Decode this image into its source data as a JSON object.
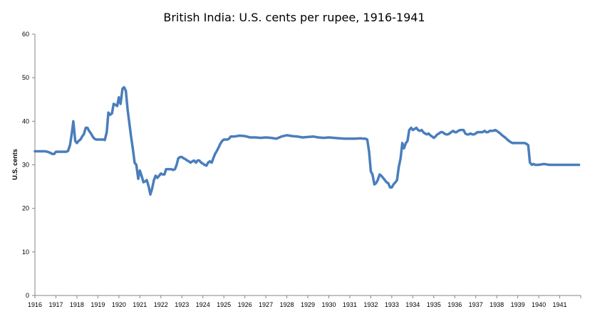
{
  "chart_data": {
    "type": "line",
    "title": "British India: U.S. cents per rupee, 1916-1941",
    "xlabel": "",
    "ylabel": "U.S. cents",
    "ylim": [
      0,
      60
    ],
    "yticks": [
      0,
      10,
      20,
      30,
      40,
      50,
      60
    ],
    "xlim": [
      1916,
      1942
    ],
    "xticks": [
      "1916",
      "1917",
      "1918",
      "1919",
      "1920",
      "1921",
      "1922",
      "1923",
      "1924",
      "1925",
      "1926",
      "1927",
      "1928",
      "1929",
      "1930",
      "1931",
      "1932",
      "1933",
      "1934",
      "1935",
      "1936",
      "1937",
      "1938",
      "1939",
      "1940",
      "1941"
    ],
    "grid": false,
    "legend": "none",
    "colors": {
      "line": "#4a7ebb",
      "axis": "#868686"
    },
    "series": [
      {
        "x": [
          1916.0,
          1916.08,
          1916.17,
          1916.25,
          1916.33,
          1916.42,
          1916.5,
          1916.58,
          1916.67,
          1916.75,
          1916.83,
          1916.92,
          1917.0,
          1917.08,
          1917.17,
          1917.25,
          1917.33,
          1917.42,
          1917.5,
          1917.58,
          1917.67,
          1917.75,
          1917.83,
          1917.92,
          1918.0,
          1918.08,
          1918.17,
          1918.25,
          1918.33,
          1918.42,
          1918.5,
          1918.58,
          1918.67,
          1918.75,
          1918.83,
          1918.92,
          1919.0,
          1919.08,
          1919.17,
          1919.25,
          1919.33,
          1919.42,
          1919.5,
          1919.58,
          1919.67,
          1919.75,
          1919.83,
          1919.92,
          1920.0,
          1920.08,
          1920.17,
          1920.25,
          1920.33,
          1920.42,
          1920.5,
          1920.58,
          1920.67,
          1920.75,
          1920.83,
          1920.92,
          1921.0,
          1921.08,
          1921.17,
          1921.25,
          1921.33,
          1921.42,
          1921.5,
          1921.58,
          1921.67,
          1921.75,
          1921.83,
          1921.92,
          1922.0,
          1922.08,
          1922.17,
          1922.25,
          1922.33,
          1922.42,
          1922.5,
          1922.58,
          1922.67,
          1922.75,
          1922.83,
          1922.92,
          1923.0,
          1923.08,
          1923.17,
          1923.25,
          1923.33,
          1923.42,
          1923.5,
          1923.58,
          1923.67,
          1923.75,
          1923.83,
          1923.92,
          1924.0,
          1924.08,
          1924.17,
          1924.25,
          1924.33,
          1924.42,
          1924.5,
          1924.58,
          1924.67,
          1924.75,
          1924.83,
          1924.92,
          1925.0,
          1925.08,
          1925.17,
          1925.25,
          1925.33,
          1925.5,
          1925.75,
          1926.0,
          1926.25,
          1926.5,
          1926.75,
          1927.0,
          1927.25,
          1927.5,
          1927.75,
          1928.0,
          1928.25,
          1928.5,
          1928.75,
          1929.0,
          1929.25,
          1929.5,
          1929.75,
          1930.0,
          1930.25,
          1930.5,
          1930.75,
          1931.0,
          1931.25,
          1931.5,
          1931.67,
          1931.75,
          1931.83,
          1931.92,
          1932.0,
          1932.08,
          1932.17,
          1932.25,
          1932.33,
          1932.42,
          1932.5,
          1932.58,
          1932.67,
          1932.75,
          1932.83,
          1932.92,
          1933.0,
          1933.08,
          1933.17,
          1933.25,
          1933.33,
          1933.42,
          1933.5,
          1933.58,
          1933.67,
          1933.75,
          1933.83,
          1933.92,
          1934.0,
          1934.08,
          1934.17,
          1934.25,
          1934.33,
          1934.42,
          1934.5,
          1934.58,
          1934.67,
          1934.75,
          1934.83,
          1934.92,
          1935.0,
          1935.08,
          1935.17,
          1935.25,
          1935.33,
          1935.42,
          1935.5,
          1935.58,
          1935.67,
          1935.75,
          1935.83,
          1935.92,
          1936.0,
          1936.08,
          1936.17,
          1936.25,
          1936.33,
          1936.42,
          1936.5,
          1936.58,
          1936.67,
          1936.75,
          1936.83,
          1936.92,
          1937.0,
          1937.08,
          1937.17,
          1937.25,
          1937.33,
          1937.42,
          1937.5,
          1937.58,
          1937.67,
          1937.75,
          1937.83,
          1937.92,
          1938.0,
          1938.08,
          1938.17,
          1938.25,
          1938.33,
          1938.42,
          1938.5,
          1938.58,
          1938.67,
          1938.75,
          1938.83,
          1938.92,
          1939.0,
          1939.08,
          1939.17,
          1939.25,
          1939.33,
          1939.42,
          1939.5,
          1939.58,
          1939.67,
          1939.75,
          1939.83,
          1939.92,
          1940.0,
          1940.25,
          1940.5,
          1940.75,
          1941.0,
          1941.25,
          1941.5,
          1941.75,
          1941.92
        ],
        "y": [
          33.1,
          33.1,
          33.1,
          33.1,
          33.1,
          33.1,
          33.1,
          33.0,
          32.9,
          32.7,
          32.5,
          32.5,
          33.0,
          33.0,
          33.0,
          33.0,
          33.0,
          33.0,
          33.0,
          33.2,
          34.5,
          37.0,
          40.0,
          35.5,
          35.0,
          35.5,
          35.8,
          36.5,
          37.0,
          38.5,
          38.5,
          37.8,
          37.2,
          36.5,
          36.0,
          35.8,
          35.8,
          35.8,
          35.8,
          35.8,
          35.7,
          37.5,
          42.0,
          41.5,
          41.8,
          44.0,
          43.8,
          43.5,
          45.5,
          44.0,
          47.5,
          47.8,
          47.0,
          42.5,
          39.5,
          36.5,
          33.5,
          30.5,
          30.0,
          26.8,
          28.7,
          27.5,
          26.0,
          26.2,
          26.5,
          25.0,
          23.2,
          24.5,
          26.5,
          27.5,
          27.0,
          27.5,
          28.0,
          27.8,
          27.8,
          29.0,
          29.0,
          29.0,
          29.0,
          28.8,
          29.0,
          30.0,
          31.5,
          31.8,
          31.8,
          31.5,
          31.3,
          31.0,
          30.8,
          30.5,
          30.8,
          31.0,
          30.5,
          31.0,
          31.0,
          30.5,
          30.3,
          30.0,
          29.8,
          30.5,
          30.8,
          30.5,
          31.5,
          32.5,
          33.2,
          34.0,
          34.8,
          35.5,
          35.8,
          35.8,
          35.8,
          36.0,
          36.5,
          36.5,
          36.7,
          36.6,
          36.3,
          36.3,
          36.2,
          36.3,
          36.2,
          36.0,
          36.5,
          36.8,
          36.6,
          36.5,
          36.3,
          36.4,
          36.5,
          36.3,
          36.2,
          36.3,
          36.2,
          36.1,
          36.0,
          36.0,
          36.0,
          36.1,
          36.0,
          36.0,
          35.8,
          33.0,
          28.5,
          27.8,
          25.5,
          25.8,
          26.5,
          27.8,
          27.5,
          27.0,
          26.5,
          26.0,
          25.8,
          24.8,
          24.8,
          25.5,
          26.0,
          26.5,
          29.5,
          31.5,
          35.0,
          33.8,
          35.0,
          35.5,
          38.0,
          38.5,
          38.0,
          38.2,
          38.5,
          38.0,
          37.8,
          38.0,
          37.5,
          37.2,
          37.0,
          37.2,
          36.8,
          36.5,
          36.2,
          36.5,
          37.0,
          37.2,
          37.5,
          37.5,
          37.2,
          37.0,
          37.0,
          37.2,
          37.5,
          37.8,
          37.5,
          37.5,
          37.8,
          38.0,
          38.0,
          38.0,
          37.2,
          37.0,
          37.0,
          37.2,
          37.0,
          37.0,
          37.2,
          37.5,
          37.5,
          37.5,
          37.5,
          37.8,
          37.5,
          37.5,
          37.8,
          37.8,
          37.8,
          38.0,
          37.8,
          37.5,
          37.2,
          36.8,
          36.5,
          36.2,
          35.8,
          35.5,
          35.2,
          35.0,
          35.0,
          35.0,
          35.0,
          35.0,
          35.0,
          35.0,
          35.0,
          34.8,
          34.5,
          30.5,
          30.0,
          30.2,
          30.0,
          30.0,
          30.0,
          30.2,
          30.0,
          30.0,
          30.0,
          30.0,
          30.0,
          30.0,
          30.0
        ]
      }
    ]
  }
}
